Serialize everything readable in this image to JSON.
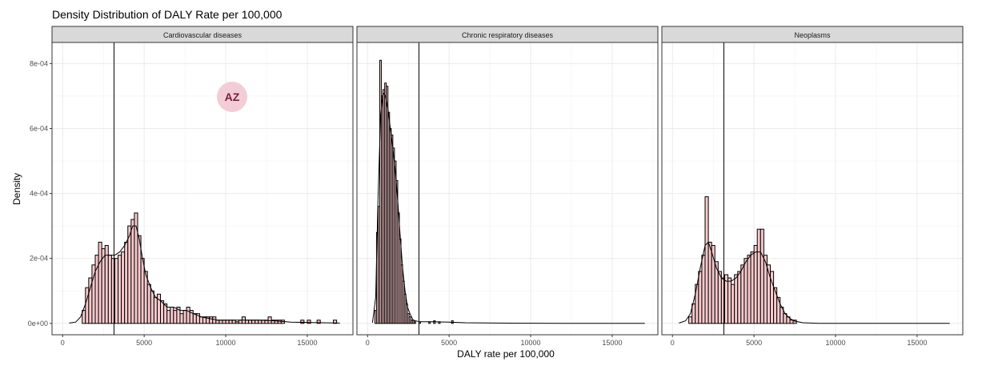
{
  "colors": {
    "panel_bg": "#ffffff",
    "panel_border": "#333333",
    "grid_major": "#ebebeb",
    "strip_bg": "#d9d9d9",
    "hist_fill": "#f8c9cc",
    "hist_stroke": "#000000",
    "density_line": "#000000",
    "badge_bg": "#f3cdd6",
    "badge_text": "#7a1f3d"
  },
  "badge": {
    "text": "AZ"
  },
  "chart_data": {
    "type": "histogram",
    "title": "Density Distribution of DALY Rate per 100,000",
    "xlabel": "DALY rate per 100,000",
    "ylabel": "Density",
    "xlim": [
      -650,
      17800
    ],
    "ylim": [
      -3.5e-05,
      0.000865
    ],
    "x_ticks": [
      0,
      5000,
      10000,
      15000
    ],
    "x_tick_labels": [
      "0",
      "5000",
      "10000",
      "15000"
    ],
    "y_ticks": [
      0,
      0.0002,
      0.0004,
      0.0006,
      0.0008
    ],
    "y_tick_labels": [
      "0e+00",
      "2e-04",
      "4e-04",
      "6e-04",
      "8e-04"
    ],
    "grid": true,
    "vline_x": 3150,
    "panels": [
      {
        "name": "Cardiovascular diseases",
        "bins": [
          {
            "x": 1300,
            "y": 4e-05
          },
          {
            "x": 1500,
            "y": 0.00011
          },
          {
            "x": 1700,
            "y": 0.00014
          },
          {
            "x": 1900,
            "y": 0.00018
          },
          {
            "x": 2100,
            "y": 0.00021
          },
          {
            "x": 2300,
            "y": 0.00025
          },
          {
            "x": 2500,
            "y": 0.00023
          },
          {
            "x": 2700,
            "y": 0.00024
          },
          {
            "x": 2900,
            "y": 0.00021
          },
          {
            "x": 3100,
            "y": 0.0002
          },
          {
            "x": 3300,
            "y": 0.0002
          },
          {
            "x": 3500,
            "y": 0.00021
          },
          {
            "x": 3700,
            "y": 0.00022
          },
          {
            "x": 3900,
            "y": 0.00025
          },
          {
            "x": 4100,
            "y": 0.0003
          },
          {
            "x": 4300,
            "y": 0.00032
          },
          {
            "x": 4500,
            "y": 0.00034
          },
          {
            "x": 4700,
            "y": 0.00027
          },
          {
            "x": 4900,
            "y": 0.0002
          },
          {
            "x": 5100,
            "y": 0.00016
          },
          {
            "x": 5300,
            "y": 0.00012
          },
          {
            "x": 5500,
            "y": 0.0001
          },
          {
            "x": 5700,
            "y": 8e-05
          },
          {
            "x": 5900,
            "y": 9e-05
          },
          {
            "x": 6100,
            "y": 7e-05
          },
          {
            "x": 6300,
            "y": 6e-05
          },
          {
            "x": 6500,
            "y": 4e-05
          },
          {
            "x": 6700,
            "y": 5e-05
          },
          {
            "x": 6900,
            "y": 4e-05
          },
          {
            "x": 7100,
            "y": 5e-05
          },
          {
            "x": 7300,
            "y": 3e-05
          },
          {
            "x": 7500,
            "y": 4e-05
          },
          {
            "x": 7700,
            "y": 5e-05
          },
          {
            "x": 7900,
            "y": 4e-05
          },
          {
            "x": 8100,
            "y": 3e-05
          },
          {
            "x": 8300,
            "y": 3e-05
          },
          {
            "x": 8500,
            "y": 2e-05
          },
          {
            "x": 8700,
            "y": 2e-05
          },
          {
            "x": 8900,
            "y": 2e-05
          },
          {
            "x": 9100,
            "y": 2e-05
          },
          {
            "x": 9300,
            "y": 2e-05
          },
          {
            "x": 9500,
            "y": 1e-05
          },
          {
            "x": 9700,
            "y": 1e-05
          },
          {
            "x": 9900,
            "y": 1e-05
          },
          {
            "x": 10100,
            "y": 1e-05
          },
          {
            "x": 10300,
            "y": 1e-05
          },
          {
            "x": 10500,
            "y": 1e-05
          },
          {
            "x": 10700,
            "y": 5e-06
          },
          {
            "x": 10900,
            "y": 1e-05
          },
          {
            "x": 11100,
            "y": 2e-05
          },
          {
            "x": 11300,
            "y": 1e-05
          },
          {
            "x": 11500,
            "y": 1e-05
          },
          {
            "x": 11700,
            "y": 1e-05
          },
          {
            "x": 11900,
            "y": 1e-05
          },
          {
            "x": 12100,
            "y": 1e-05
          },
          {
            "x": 12300,
            "y": 1e-05
          },
          {
            "x": 12500,
            "y": 1e-05
          },
          {
            "x": 12700,
            "y": 2e-05
          },
          {
            "x": 12900,
            "y": 1e-05
          },
          {
            "x": 13100,
            "y": 1e-05
          },
          {
            "x": 13300,
            "y": 1e-05
          },
          {
            "x": 13500,
            "y": 1e-05
          },
          {
            "x": 13700,
            "y": 0.0
          },
          {
            "x": 13900,
            "y": 0.0
          },
          {
            "x": 14100,
            "y": 0.0
          },
          {
            "x": 14300,
            "y": 0.0
          },
          {
            "x": 14500,
            "y": 0.0
          },
          {
            "x": 14700,
            "y": 1e-05
          },
          {
            "x": 14900,
            "y": 0.0
          },
          {
            "x": 15100,
            "y": 1e-05
          },
          {
            "x": 15300,
            "y": 0.0
          },
          {
            "x": 15500,
            "y": 0.0
          },
          {
            "x": 15700,
            "y": 1e-05
          },
          {
            "x": 15900,
            "y": 0.0
          },
          {
            "x": 16100,
            "y": 0.0
          },
          {
            "x": 16300,
            "y": 0.0
          },
          {
            "x": 16500,
            "y": 0.0
          },
          {
            "x": 16700,
            "y": 1e-05
          }
        ],
        "density": [
          [
            400,
            1e-06
          ],
          [
            800,
            4e-06
          ],
          [
            1100,
            2e-05
          ],
          [
            1400,
            6e-05
          ],
          [
            1700,
            0.00011
          ],
          [
            2000,
            0.00016
          ],
          [
            2300,
            0.00019
          ],
          [
            2600,
            0.00021
          ],
          [
            2900,
            0.00021
          ],
          [
            3200,
            0.00021
          ],
          [
            3500,
            0.00022
          ],
          [
            3800,
            0.00024
          ],
          [
            4100,
            0.00027
          ],
          [
            4300,
            0.0003
          ],
          [
            4500,
            0.0003
          ],
          [
            4700,
            0.00026
          ],
          [
            4900,
            0.0002
          ],
          [
            5100,
            0.00015
          ],
          [
            5400,
            0.00011
          ],
          [
            5700,
            8e-05
          ],
          [
            6000,
            7e-05
          ],
          [
            6400,
            5e-05
          ],
          [
            6800,
            5e-05
          ],
          [
            7200,
            4e-05
          ],
          [
            7600,
            4e-05
          ],
          [
            8000,
            3e-05
          ],
          [
            8500,
            2e-05
          ],
          [
            9000,
            1.5e-05
          ],
          [
            9500,
            1e-05
          ],
          [
            10000,
            1e-05
          ],
          [
            11000,
            1e-05
          ],
          [
            12000,
            1e-05
          ],
          [
            13000,
            8e-06
          ],
          [
            14000,
            4e-06
          ],
          [
            15000,
            3e-06
          ],
          [
            16000,
            2e-06
          ],
          [
            17000,
            1e-06
          ]
        ]
      },
      {
        "name": "Chronic respiratory diseases",
        "bins": [
          {
            "x": 500,
            "y": 4e-05
          },
          {
            "x": 600,
            "y": 0.00028
          },
          {
            "x": 700,
            "y": 0.00036
          },
          {
            "x": 800,
            "y": 0.00081
          },
          {
            "x": 900,
            "y": 0.0007
          },
          {
            "x": 1000,
            "y": 0.00072
          },
          {
            "x": 1100,
            "y": 0.00074
          },
          {
            "x": 1200,
            "y": 0.00073
          },
          {
            "x": 1300,
            "y": 0.00065
          },
          {
            "x": 1400,
            "y": 0.0006
          },
          {
            "x": 1500,
            "y": 0.00058
          },
          {
            "x": 1600,
            "y": 0.00054
          },
          {
            "x": 1700,
            "y": 0.0005
          },
          {
            "x": 1800,
            "y": 0.00044
          },
          {
            "x": 1900,
            "y": 0.00034
          },
          {
            "x": 2000,
            "y": 0.00026
          },
          {
            "x": 2100,
            "y": 0.00018
          },
          {
            "x": 2200,
            "y": 0.00013
          },
          {
            "x": 2300,
            "y": 9e-05
          },
          {
            "x": 2400,
            "y": 6e-05
          },
          {
            "x": 2500,
            "y": 3e-05
          },
          {
            "x": 2600,
            "y": 2e-05
          },
          {
            "x": 2700,
            "y": 1e-05
          },
          {
            "x": 2800,
            "y": 1e-05
          },
          {
            "x": 2900,
            "y": 5e-06
          },
          {
            "x": 3200,
            "y": 5e-06
          },
          {
            "x": 3800,
            "y": 5e-06
          },
          {
            "x": 4100,
            "y": 8e-06
          },
          {
            "x": 4400,
            "y": 5e-06
          },
          {
            "x": 5200,
            "y": 8e-06
          }
        ],
        "density": [
          [
            300,
            2e-06
          ],
          [
            500,
            8e-05
          ],
          [
            650,
            0.0004
          ],
          [
            800,
            0.00064
          ],
          [
            950,
            0.00071
          ],
          [
            1100,
            0.0007
          ],
          [
            1250,
            0.00066
          ],
          [
            1400,
            0.0006
          ],
          [
            1550,
            0.00054
          ],
          [
            1700,
            0.00047
          ],
          [
            1850,
            0.00038
          ],
          [
            2000,
            0.00027
          ],
          [
            2150,
            0.00017
          ],
          [
            2300,
            0.0001
          ],
          [
            2450,
            5e-05
          ],
          [
            2600,
            3e-05
          ],
          [
            2800,
            1e-05
          ],
          [
            3200,
            5e-06
          ],
          [
            4000,
            5e-06
          ],
          [
            5000,
            4e-06
          ],
          [
            6000,
            2e-06
          ],
          [
            8000,
            1e-06
          ],
          [
            12000,
            0.0
          ],
          [
            17000,
            0.0
          ]
        ]
      },
      {
        "name": "Neoplasms",
        "bins": [
          {
            "x": 1100,
            "y": 2e-05
          },
          {
            "x": 1300,
            "y": 6e-05
          },
          {
            "x": 1500,
            "y": 0.00012
          },
          {
            "x": 1700,
            "y": 0.00016
          },
          {
            "x": 1900,
            "y": 0.00021
          },
          {
            "x": 2100,
            "y": 0.00039
          },
          {
            "x": 2300,
            "y": 0.00025
          },
          {
            "x": 2500,
            "y": 0.00024
          },
          {
            "x": 2700,
            "y": 0.00019
          },
          {
            "x": 2900,
            "y": 0.00016
          },
          {
            "x": 3100,
            "y": 0.00014
          },
          {
            "x": 3300,
            "y": 0.00015
          },
          {
            "x": 3500,
            "y": 0.00014
          },
          {
            "x": 3700,
            "y": 0.00012
          },
          {
            "x": 3900,
            "y": 0.00015
          },
          {
            "x": 4100,
            "y": 0.00016
          },
          {
            "x": 4300,
            "y": 0.00018
          },
          {
            "x": 4500,
            "y": 0.0002
          },
          {
            "x": 4700,
            "y": 0.00021
          },
          {
            "x": 4900,
            "y": 0.00022
          },
          {
            "x": 5100,
            "y": 0.00024
          },
          {
            "x": 5300,
            "y": 0.00029
          },
          {
            "x": 5500,
            "y": 0.00029
          },
          {
            "x": 5700,
            "y": 0.00021
          },
          {
            "x": 5900,
            "y": 0.00018
          },
          {
            "x": 6100,
            "y": 0.00016
          },
          {
            "x": 6300,
            "y": 0.00011
          },
          {
            "x": 6500,
            "y": 8e-05
          },
          {
            "x": 6700,
            "y": 5e-05
          },
          {
            "x": 6900,
            "y": 3e-05
          },
          {
            "x": 7100,
            "y": 2e-05
          },
          {
            "x": 7300,
            "y": 1e-05
          },
          {
            "x": 7500,
            "y": 1e-05
          }
        ],
        "density": [
          [
            400,
            1e-06
          ],
          [
            800,
            8e-06
          ],
          [
            1100,
            3e-05
          ],
          [
            1400,
            9e-05
          ],
          [
            1700,
            0.00017
          ],
          [
            2000,
            0.00024
          ],
          [
            2200,
            0.00025
          ],
          [
            2400,
            0.00022
          ],
          [
            2700,
            0.00017
          ],
          [
            3000,
            0.00014
          ],
          [
            3300,
            0.00013
          ],
          [
            3600,
            0.00013
          ],
          [
            3900,
            0.00014
          ],
          [
            4200,
            0.00016
          ],
          [
            4500,
            0.00019
          ],
          [
            4800,
            0.00021
          ],
          [
            5100,
            0.00022
          ],
          [
            5400,
            0.00022
          ],
          [
            5700,
            0.00019
          ],
          [
            6000,
            0.00014
          ],
          [
            6300,
            0.0001
          ],
          [
            6600,
            6e-05
          ],
          [
            6900,
            3e-05
          ],
          [
            7200,
            1.5e-05
          ],
          [
            7500,
            7e-06
          ],
          [
            8000,
            2e-06
          ],
          [
            9000,
            0.0
          ],
          [
            12000,
            0.0
          ],
          [
            17000,
            0.0
          ]
        ]
      }
    ]
  }
}
